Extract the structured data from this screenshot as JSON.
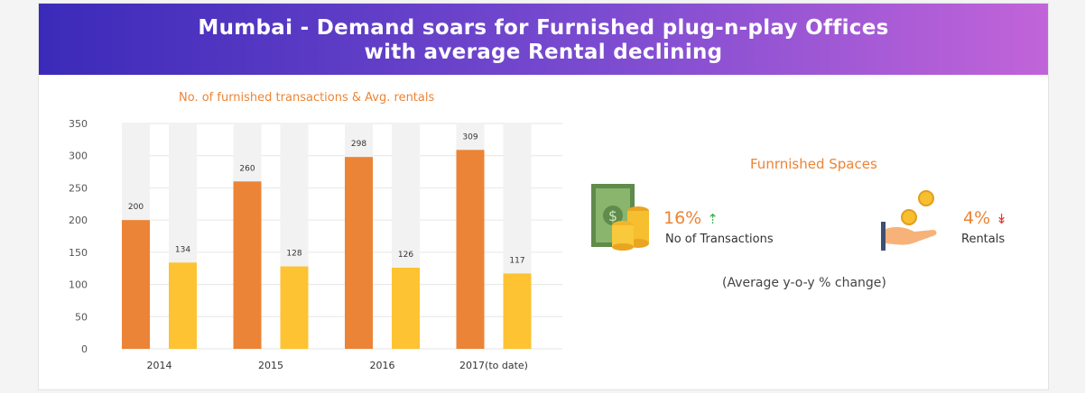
{
  "header": {
    "line1": "Mumbai - Demand soars for Furnished plug-n-play Offices",
    "line2": "with average Rental declining"
  },
  "chart_data": {
    "type": "bar",
    "title": "No. of furnished transactions & Avg. rentals",
    "categories": [
      "2014",
      "2015",
      "2016",
      "2017(to date)"
    ],
    "series": [
      {
        "name": "",
        "color": "#eb8436",
        "values": [
          200,
          260,
          298,
          309
        ]
      },
      {
        "name": "",
        "color": "#fdc332",
        "values": [
          134,
          128,
          126,
          117
        ]
      }
    ],
    "yticks": [
      0,
      50,
      100,
      150,
      200,
      250,
      300,
      350
    ],
    "ylim": [
      0,
      350
    ],
    "track_color": "#f2f2f2",
    "grid": true
  },
  "summary": {
    "title": "Funrnished Spaces",
    "transactions": {
      "pct": "16%",
      "arrow": "⇡",
      "label": "No of Transactions"
    },
    "rentals": {
      "pct": "4%",
      "arrow": "↡",
      "label": "Rentals"
    },
    "note": "(Average y-o-y % change)",
    "icons": [
      "money-coins-icon",
      "hand-coins-icon"
    ]
  }
}
